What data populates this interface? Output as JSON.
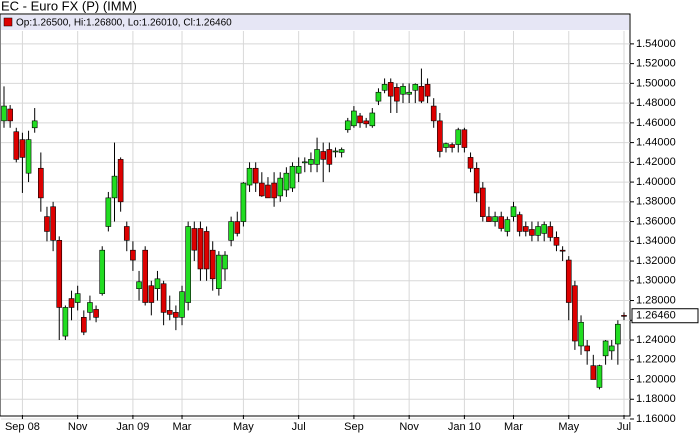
{
  "chart_data": {
    "type": "candlestick",
    "title": "EC - Euro FX (P) (IMM)",
    "legend": "Op:1.26500, Hi:1.26800, Lo:1.26010, Cl:1.26460",
    "last_value_label": "1.26460",
    "up_color": "#22dd22",
    "down_color": "#dd0000",
    "grid": true,
    "categories": [
      null,
      null,
      null,
      "Sep 08",
      null,
      null,
      null,
      null,
      null,
      null,
      null,
      null,
      "Nov",
      null,
      null,
      null,
      null,
      null,
      null,
      null,
      null,
      "Jan 09",
      null,
      null,
      null,
      null,
      null,
      null,
      null,
      "Mar",
      null,
      null,
      null,
      null,
      null,
      null,
      null,
      null,
      null,
      "May",
      null,
      null,
      null,
      null,
      null,
      null,
      null,
      null,
      "Jul",
      null,
      null,
      null,
      null,
      null,
      null,
      null,
      null,
      "Sep",
      null,
      null,
      null,
      null,
      null,
      null,
      null,
      null,
      "Nov",
      null,
      null,
      null,
      null,
      null,
      null,
      null,
      null,
      "Jan 10",
      null,
      null,
      null,
      null,
      null,
      null,
      null,
      "Mar",
      null,
      null,
      null,
      null,
      null,
      null,
      null,
      null,
      "May",
      null,
      null,
      null,
      null,
      null,
      null,
      null,
      null,
      "Jul"
    ],
    "open": [
      1.462,
      1.474,
      1.451,
      1.443,
      1.409,
      1.455,
      1.414,
      1.365,
      1.375,
      1.341,
      1.244,
      1.282,
      1.278,
      1.263,
      1.268,
      1.271,
      1.287,
      1.355,
      1.384,
      1.423,
      1.355,
      1.331,
      1.292,
      1.331,
      1.295,
      1.292,
      1.297,
      1.27,
      1.268,
      1.263,
      1.278,
      1.353,
      1.353,
      1.35,
      1.331,
      1.292,
      1.312,
      1.341,
      1.36,
      1.36,
      1.397,
      1.414,
      1.399,
      1.397,
      1.399,
      1.386,
      1.392,
      1.394,
      1.409,
      1.42,
      1.418,
      1.418,
      1.431,
      1.433,
      1.431,
      1.43,
      1.453,
      1.457,
      1.467,
      1.462,
      1.457,
      1.482,
      1.493,
      1.501,
      1.496,
      1.489,
      1.489,
      1.493,
      1.497,
      1.499,
      1.477,
      1.462,
      1.435,
      1.438,
      1.438,
      1.453,
      1.425,
      1.414,
      1.394,
      1.365,
      1.36,
      1.365,
      1.35,
      1.365,
      1.367,
      1.355,
      1.352,
      1.346,
      1.348,
      1.355,
      1.344,
      1.331,
      1.321,
      1.295,
      1.234,
      1.234,
      1.214,
      1.192,
      1.224,
      1.229,
      1.236,
      1.265
    ],
    "high": [
      1.497,
      1.478,
      1.455,
      1.45,
      1.452,
      1.475,
      1.43,
      1.375,
      1.38,
      1.345,
      1.275,
      1.29,
      1.295,
      1.27,
      1.285,
      1.275,
      1.335,
      1.39,
      1.44,
      1.425,
      1.36,
      1.34,
      1.31,
      1.335,
      1.3,
      1.31,
      1.3,
      1.285,
      1.275,
      1.295,
      1.36,
      1.36,
      1.36,
      1.355,
      1.34,
      1.33,
      1.33,
      1.365,
      1.37,
      1.4,
      1.42,
      1.42,
      1.41,
      1.405,
      1.41,
      1.41,
      1.415,
      1.42,
      1.425,
      1.425,
      1.43,
      1.445,
      1.44,
      1.44,
      1.435,
      1.435,
      1.465,
      1.477,
      1.47,
      1.465,
      1.475,
      1.495,
      1.505,
      1.505,
      1.5,
      1.5,
      1.5,
      1.5,
      1.515,
      1.505,
      1.485,
      1.47,
      1.44,
      1.44,
      1.455,
      1.455,
      1.43,
      1.42,
      1.4,
      1.375,
      1.37,
      1.37,
      1.365,
      1.38,
      1.37,
      1.36,
      1.36,
      1.36,
      1.36,
      1.36,
      1.35,
      1.335,
      1.325,
      1.3,
      1.265,
      1.24,
      1.225,
      1.215,
      1.24,
      1.24,
      1.26,
      1.268
    ],
    "low": [
      1.455,
      1.455,
      1.42,
      1.389,
      1.4,
      1.45,
      1.37,
      1.34,
      1.33,
      1.24,
      1.24,
      1.26,
      1.27,
      1.245,
      1.26,
      1.258,
      1.285,
      1.35,
      1.36,
      1.37,
      1.33,
      1.31,
      1.28,
      1.275,
      1.265,
      1.28,
      1.255,
      1.26,
      1.25,
      1.255,
      1.27,
      1.32,
      1.3,
      1.3,
      1.29,
      1.285,
      1.3,
      1.335,
      1.345,
      1.355,
      1.39,
      1.39,
      1.385,
      1.385,
      1.375,
      1.38,
      1.385,
      1.39,
      1.4,
      1.41,
      1.41,
      1.41,
      1.4,
      1.41,
      1.425,
      1.425,
      1.45,
      1.455,
      1.455,
      1.455,
      1.455,
      1.478,
      1.49,
      1.47,
      1.47,
      1.48,
      1.48,
      1.48,
      1.48,
      1.48,
      1.455,
      1.425,
      1.43,
      1.43,
      1.43,
      1.43,
      1.41,
      1.38,
      1.36,
      1.36,
      1.355,
      1.35,
      1.345,
      1.36,
      1.345,
      1.345,
      1.34,
      1.34,
      1.34,
      1.34,
      1.33,
      1.32,
      1.26,
      1.23,
      1.225,
      1.215,
      1.2,
      1.19,
      1.215,
      1.22,
      1.215,
      1.2601
    ],
    "close": [
      1.477,
      1.462,
      1.423,
      1.425,
      1.443,
      1.462,
      1.384,
      1.35,
      1.341,
      1.273,
      1.273,
      1.273,
      1.287,
      1.248,
      1.278,
      1.263,
      1.331,
      1.384,
      1.406,
      1.38,
      1.341,
      1.321,
      1.299,
      1.278,
      1.278,
      1.302,
      1.268,
      1.266,
      1.263,
      1.289,
      1.355,
      1.331,
      1.312,
      1.312,
      1.302,
      1.326,
      1.326,
      1.36,
      1.348,
      1.399,
      1.414,
      1.399,
      1.386,
      1.384,
      1.384,
      1.404,
      1.409,
      1.416,
      1.416,
      1.4205,
      1.423,
      1.433,
      1.423,
      1.418,
      1.4315,
      1.433,
      1.462,
      1.472,
      1.46,
      1.459,
      1.47,
      1.491,
      1.499,
      1.487,
      1.482,
      1.497,
      1.491,
      1.499,
      1.482,
      1.487,
      1.462,
      1.431,
      1.439,
      1.435,
      1.453,
      1.435,
      1.414,
      1.389,
      1.365,
      1.36,
      1.365,
      1.353,
      1.362,
      1.375,
      1.35,
      1.35,
      1.346,
      1.355,
      1.357,
      1.344,
      1.336,
      1.3305,
      1.278,
      1.239,
      1.258,
      1.229,
      1.2,
      1.214,
      1.239,
      1.234,
      1.256,
      1.2646
    ],
    "ylim": [
      1.16,
      1.55
    ],
    "yticks": [
      {
        "value": 1.16,
        "label": "1.16000"
      },
      {
        "value": 1.18,
        "label": "1.18000"
      },
      {
        "value": 1.2,
        "label": "1.20000"
      },
      {
        "value": 1.22,
        "label": "1.22000"
      },
      {
        "value": 1.24,
        "label": "1.24000"
      },
      {
        "value": 1.26,
        "label": "1.26000"
      },
      {
        "value": 1.28,
        "label": "1.28000"
      },
      {
        "value": 1.3,
        "label": "1.30000"
      },
      {
        "value": 1.32,
        "label": "1.32000"
      },
      {
        "value": 1.34,
        "label": "1.34000"
      },
      {
        "value": 1.36,
        "label": "1.36000"
      },
      {
        "value": 1.38,
        "label": "1.38000"
      },
      {
        "value": 1.4,
        "label": "1.40000"
      },
      {
        "value": 1.42,
        "label": "1.42000"
      },
      {
        "value": 1.44,
        "label": "1.44000"
      },
      {
        "value": 1.46,
        "label": "1.46000"
      },
      {
        "value": 1.48,
        "label": "1.48000"
      },
      {
        "value": 1.5,
        "label": "1.50000"
      },
      {
        "value": 1.52,
        "label": "1.52000"
      },
      {
        "value": 1.54,
        "label": "1.54000"
      }
    ]
  }
}
